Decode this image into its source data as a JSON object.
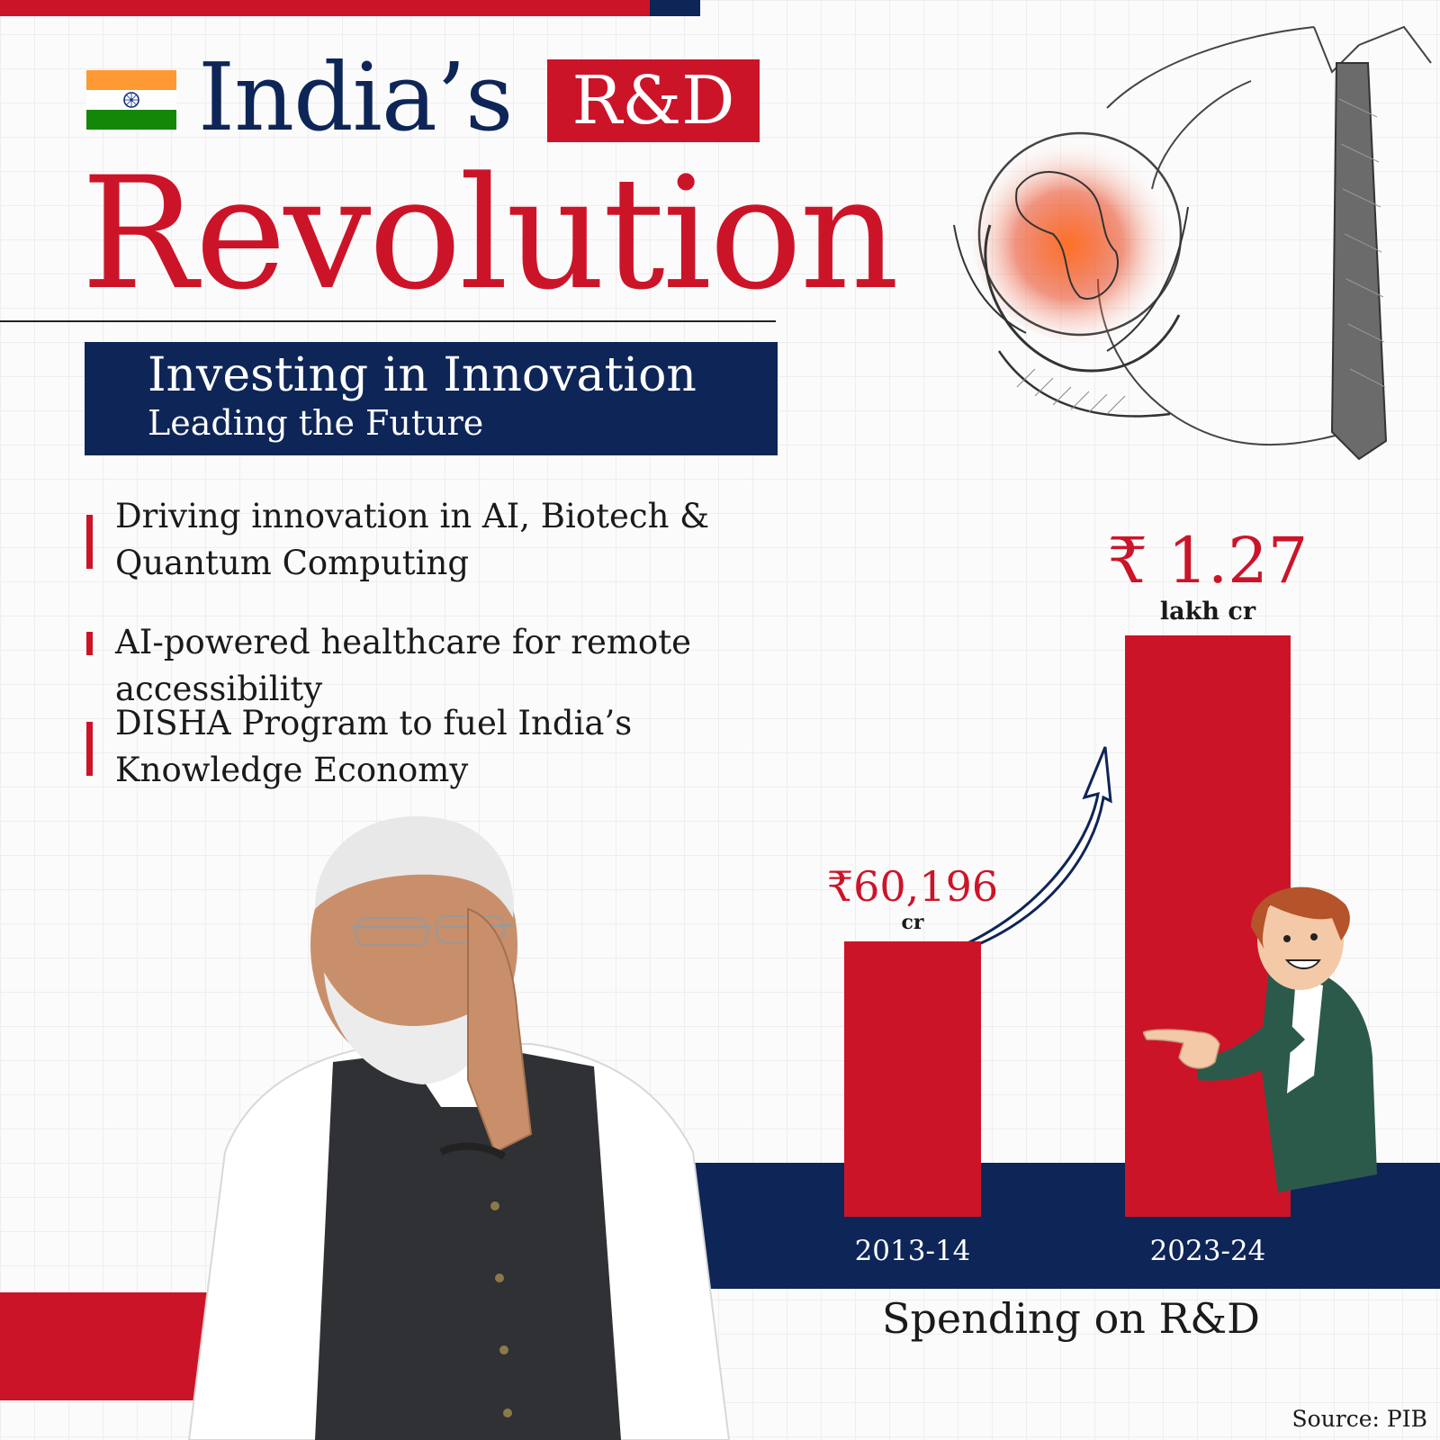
{
  "header": {
    "title_line1": "India’s",
    "badge": "R&D",
    "title_line2": "Revolution",
    "subtitle_main": "Investing in Innovation",
    "subtitle_sub": "Leading the Future"
  },
  "bullets": [
    "Driving innovation in AI, Biotech &\nQuantum Computing",
    "AI-powered healthcare for remote accessibility",
    "DISHA Program to fuel India’s\nKnowledge Economy"
  ],
  "chart_data": {
    "type": "bar",
    "categories": [
      "2013-14",
      "2023-24"
    ],
    "values": [
      60196,
      127000
    ],
    "value_labels": [
      {
        "amount": "₹60,196",
        "unit": "cr"
      },
      {
        "amount": "₹ 1.27",
        "unit": "lakh cr"
      }
    ],
    "ylim": [
      0,
      127000
    ],
    "caption": "Spending on R&D",
    "grid": false,
    "legend": "none"
  },
  "source": "Source: PIB",
  "colors": {
    "red": "#cc1429",
    "navy": "#0e2557",
    "saffron": "#ff9933",
    "green": "#138808"
  }
}
